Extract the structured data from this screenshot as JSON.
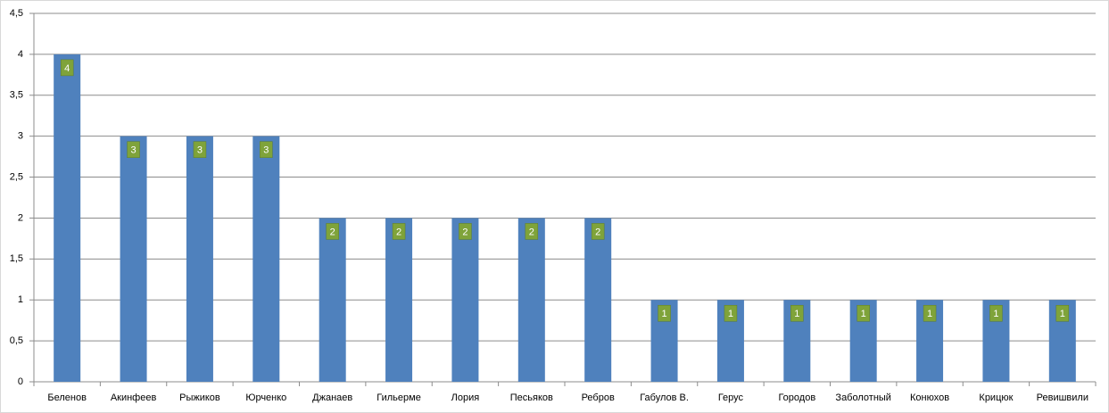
{
  "chart_data": {
    "type": "bar",
    "categories": [
      "Беленов",
      "Акинфеев",
      "Рыжиков",
      "Юрченко",
      "Джанаев",
      "Гильерме",
      "Лория",
      "Песьяков",
      "Ребров",
      "Габулов В.",
      "Герус",
      "Городов",
      "Заболотный",
      "Конюхов",
      "Крицюк",
      "Ревишвили"
    ],
    "values": [
      4,
      3,
      3,
      3,
      2,
      2,
      2,
      2,
      2,
      1,
      1,
      1,
      1,
      1,
      1,
      1
    ],
    "color": "#4f81bd",
    "label_color": "#7fa33a",
    "ylim": [
      0,
      4.5
    ],
    "yticks": [
      0,
      {
        "value": 0.5,
        "label": "0,5"
      },
      1,
      {
        "value": 1.5,
        "label": "1,5"
      },
      2,
      {
        "value": 2.5,
        "label": "2,5"
      },
      3,
      {
        "value": 3.5,
        "label": "3,5"
      },
      4,
      {
        "value": 4.5,
        "label": "4,5"
      }
    ],
    "grid": true
  }
}
